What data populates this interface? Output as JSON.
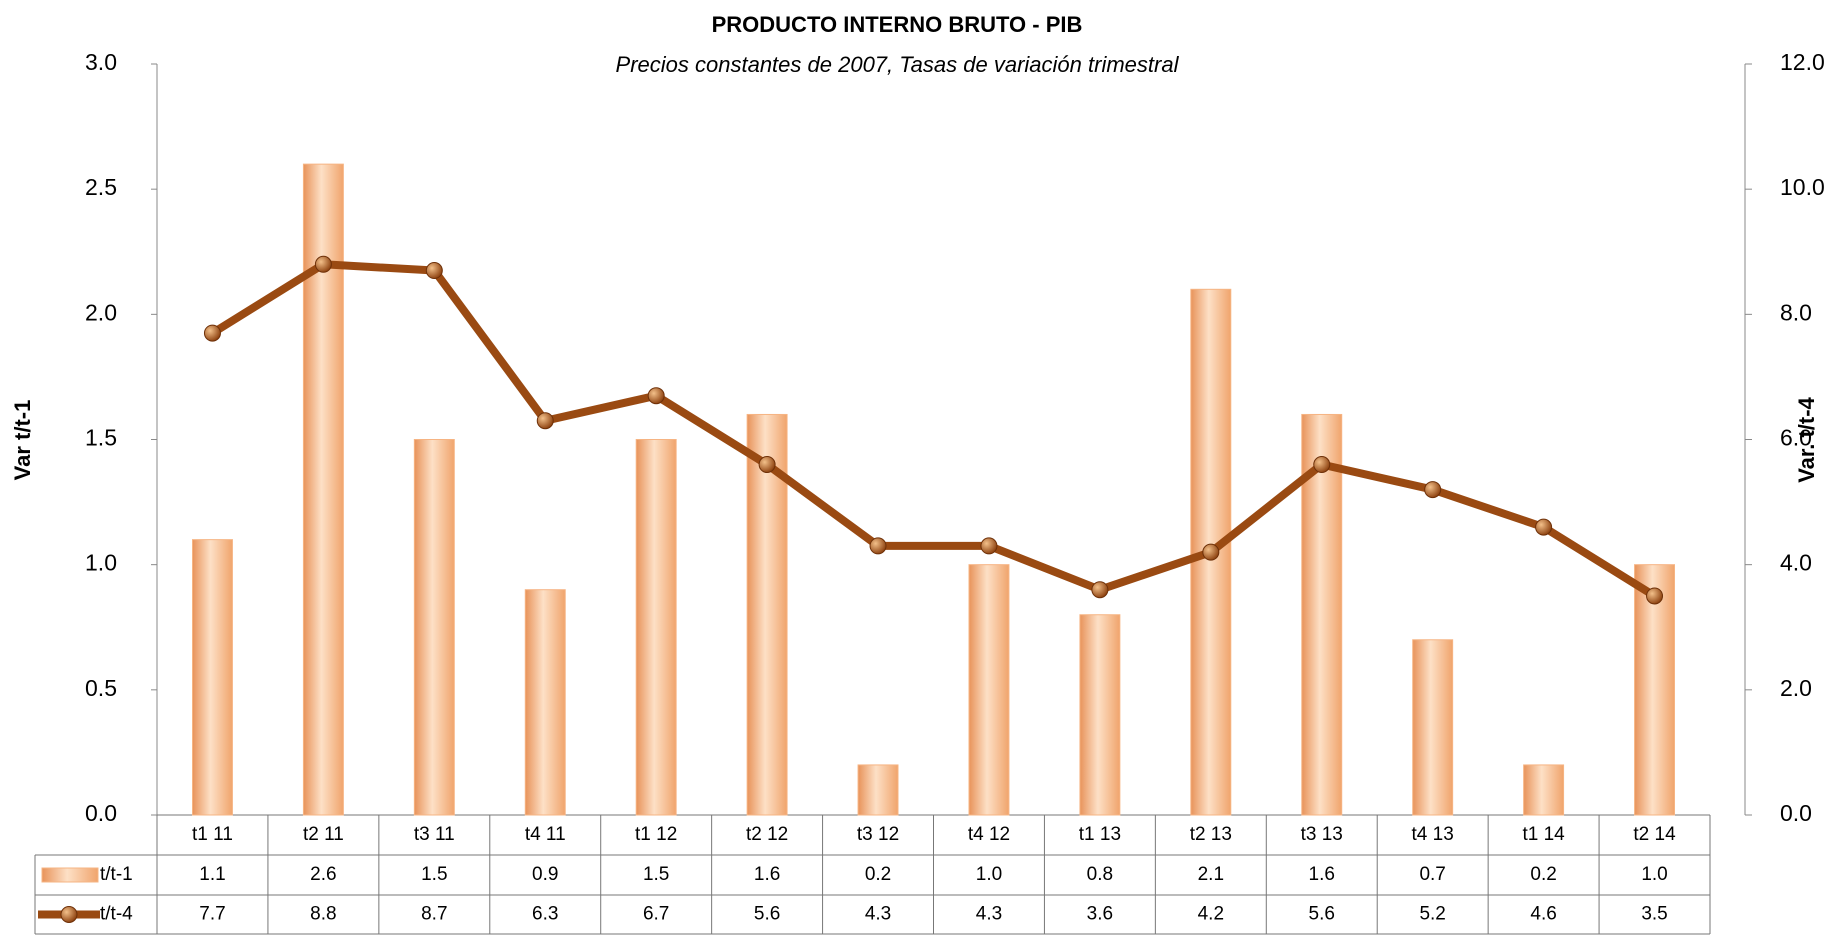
{
  "chart_data": {
    "type": "bar",
    "title": "PRODUCTO INTERNO BRUTO - PIB",
    "subtitle": "Precios constantes de 2007, Tasas de variación trimestral",
    "y_label": "Var t/t-1",
    "y2_label": "Var. t/t-4",
    "categories": [
      "t1 11",
      "t2 11",
      "t3 11",
      "t4 11",
      "t1 12",
      "t2 12",
      "t3 12",
      "t4 12",
      "t1 13",
      "t2 13",
      "t3 13",
      "t4 13",
      "t1 14",
      "t2 14"
    ],
    "series": [
      {
        "name": "t/t-1",
        "type": "bar",
        "color": "#f6b483",
        "values": [
          1.1,
          2.6,
          1.5,
          0.9,
          1.5,
          1.6,
          0.2,
          1.0,
          0.8,
          2.1,
          1.6,
          0.7,
          0.2,
          1.0
        ],
        "value_labels": [
          "1.1",
          "2.6",
          "1.5",
          "0.9",
          "1.5",
          "1.6",
          "0.2",
          "1.0",
          "0.8",
          "2.1",
          "1.6",
          "0.7",
          "0.2",
          "1.0"
        ]
      },
      {
        "name": "t/t-4",
        "type": "line",
        "axis": "y2",
        "color": "#9a4a12",
        "values": [
          7.7,
          8.8,
          8.7,
          6.3,
          6.7,
          5.6,
          4.3,
          4.3,
          3.6,
          4.2,
          5.6,
          5.2,
          4.6,
          3.5
        ],
        "value_labels": [
          "7.7",
          "8.8",
          "8.7",
          "6.3",
          "6.7",
          "5.6",
          "4.3",
          "4.3",
          "3.6",
          "4.2",
          "5.6",
          "5.2",
          "4.6",
          "3.5"
        ]
      }
    ],
    "ylim": [
      0,
      3
    ],
    "yticks": [
      {
        "value": 0,
        "label": "0.0"
      },
      {
        "value": 0.5,
        "label": "0.5"
      },
      {
        "value": 1,
        "label": "1.0"
      },
      {
        "value": 1.5,
        "label": "1.5"
      },
      {
        "value": 2,
        "label": "2.0"
      },
      {
        "value": 2.5,
        "label": "2.5"
      },
      {
        "value": 3,
        "label": "3.0"
      }
    ],
    "y2lim": [
      0,
      12
    ],
    "y2ticks": [
      {
        "value": 0,
        "label": "0.0"
      },
      {
        "value": 2,
        "label": "2.0"
      },
      {
        "value": 4,
        "label": "4.0"
      },
      {
        "value": 6,
        "label": "6.0"
      },
      {
        "value": 8,
        "label": "8.0"
      },
      {
        "value": 10,
        "label": "10.0"
      },
      {
        "value": 12,
        "label": "12.0"
      }
    ],
    "grid": false
  }
}
